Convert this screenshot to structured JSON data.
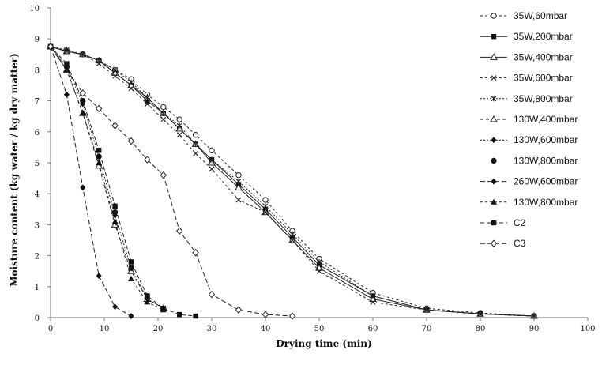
{
  "chart_data": {
    "type": "line",
    "title": "",
    "xlabel": "Drying time (min)",
    "ylabel": "Moisture content (kg water / kg dry matter)",
    "xlim": [
      0,
      100
    ],
    "ylim": [
      0,
      10
    ],
    "xticks": [
      0,
      10,
      20,
      30,
      40,
      50,
      60,
      70,
      80,
      90,
      100
    ],
    "yticks": [
      0,
      1,
      2,
      3,
      4,
      5,
      6,
      7,
      8,
      9,
      10
    ],
    "grid": false,
    "legend_position": "right",
    "series": [
      {
        "name": "35W,60mbar",
        "marker": "circle-open",
        "dash": "3,3",
        "x": [
          0,
          3,
          6,
          9,
          12,
          15,
          18,
          21,
          24,
          27,
          30,
          35,
          40,
          45,
          50,
          60,
          70,
          80,
          90
        ],
        "y": [
          8.75,
          8.6,
          8.5,
          8.3,
          8.0,
          7.7,
          7.2,
          6.8,
          6.4,
          5.9,
          5.4,
          4.6,
          3.8,
          2.8,
          1.9,
          0.8,
          0.3,
          0.15,
          0.05
        ]
      },
      {
        "name": "35W,200mbar",
        "marker": "square-filled",
        "dash": "",
        "x": [
          0,
          3,
          6,
          9,
          12,
          15,
          18,
          21,
          24,
          27,
          30,
          35,
          40,
          45,
          50,
          60,
          70,
          80,
          90
        ],
        "y": [
          8.75,
          8.6,
          8.5,
          8.3,
          7.9,
          7.5,
          7.0,
          6.6,
          6.1,
          5.6,
          5.1,
          4.3,
          3.5,
          2.6,
          1.7,
          0.7,
          0.25,
          0.12,
          0.05
        ]
      },
      {
        "name": "35W,400mbar",
        "marker": "triangle-open",
        "dash": "",
        "x": [
          0,
          3,
          6,
          9,
          12,
          15,
          18,
          21,
          24,
          27,
          30,
          35,
          40,
          45,
          50,
          60,
          70,
          80,
          90
        ],
        "y": [
          8.75,
          8.6,
          8.5,
          8.3,
          7.9,
          7.5,
          7.1,
          6.6,
          6.1,
          5.6,
          5.0,
          4.2,
          3.4,
          2.5,
          1.6,
          0.6,
          0.25,
          0.12,
          0.05
        ]
      },
      {
        "name": "35W,600mbar",
        "marker": "x",
        "dash": "3,3",
        "x": [
          0,
          3,
          6,
          9,
          12,
          15,
          18,
          21,
          24,
          27,
          30,
          35,
          40,
          45,
          50,
          60,
          70,
          80,
          90
        ],
        "y": [
          8.75,
          8.6,
          8.5,
          8.2,
          7.8,
          7.4,
          6.9,
          6.4,
          5.9,
          5.3,
          4.8,
          3.8,
          3.4,
          2.5,
          1.5,
          0.5,
          0.25,
          0.12,
          0.05
        ]
      },
      {
        "name": "35W,800mbar",
        "marker": "asterisk",
        "dash": "2,2",
        "x": [
          0,
          3,
          6,
          9,
          12,
          15,
          18,
          21,
          24,
          27,
          30,
          35,
          40,
          45,
          50,
          60,
          70,
          80,
          90
        ],
        "y": [
          8.75,
          8.65,
          8.5,
          8.3,
          8.0,
          7.6,
          7.1,
          6.6,
          6.2,
          5.6,
          5.1,
          4.4,
          3.6,
          2.7,
          1.8,
          0.7,
          0.25,
          0.12,
          0.05
        ]
      },
      {
        "name": "130W,400mbar",
        "marker": "triangle-open",
        "dash": "4,3",
        "x": [
          0,
          3,
          6,
          9,
          12,
          15,
          18,
          21
        ],
        "y": [
          8.75,
          8.0,
          6.6,
          4.9,
          3.0,
          1.5,
          0.6,
          0.3
        ]
      },
      {
        "name": "130W,600mbar",
        "marker": "diamond-filled",
        "dash": "2,2",
        "x": [
          0,
          3,
          6,
          9,
          12,
          15,
          18,
          21
        ],
        "y": [
          8.75,
          8.1,
          6.9,
          5.2,
          3.3,
          1.6,
          0.6,
          0.3
        ]
      },
      {
        "name": "130W,800mbar",
        "marker": "circle-filled",
        "dash": "none",
        "x": [
          0,
          3,
          6,
          9,
          12,
          15,
          18,
          21
        ],
        "y": [
          8.75,
          8.1,
          7.0,
          5.2,
          3.4,
          1.6,
          0.7,
          0.3
        ]
      },
      {
        "name": "260W,600mbar",
        "marker": "diamond-filled",
        "dash": "6,3",
        "x": [
          0,
          3,
          6,
          9,
          12,
          15
        ],
        "y": [
          8.75,
          7.2,
          4.2,
          1.35,
          0.35,
          0.05
        ]
      },
      {
        "name": "130W,800mbar",
        "marker": "triangle-filled",
        "dash": "3,3",
        "x": [
          0,
          3,
          6,
          9,
          12,
          15,
          18,
          21
        ],
        "y": [
          8.75,
          8.0,
          6.6,
          5.0,
          3.1,
          1.25,
          0.5,
          0.25
        ]
      },
      {
        "name": "C2",
        "marker": "square-filled",
        "dash": "5,3",
        "x": [
          0,
          3,
          6,
          9,
          12,
          15,
          18,
          21,
          24,
          27
        ],
        "y": [
          8.75,
          8.2,
          7.0,
          5.4,
          3.6,
          1.8,
          0.7,
          0.3,
          0.1,
          0.05
        ]
      },
      {
        "name": "C3",
        "marker": "diamond-open",
        "dash": "6,3",
        "x": [
          0,
          6,
          9,
          12,
          15,
          18,
          21,
          24,
          27,
          30,
          35,
          40,
          45
        ],
        "y": [
          8.75,
          7.25,
          6.75,
          6.2,
          5.7,
          5.1,
          4.6,
          2.8,
          2.1,
          0.75,
          0.25,
          0.1,
          0.05
        ]
      }
    ]
  }
}
